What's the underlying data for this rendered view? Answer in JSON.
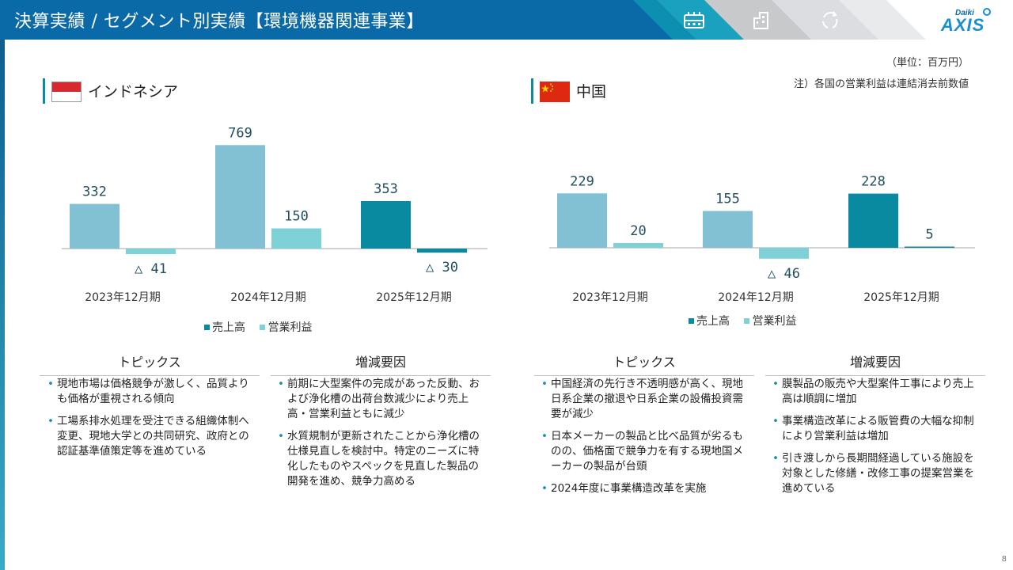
{
  "header": {
    "title": "決算実績 / セグメント別実績【環境機器関連事業】",
    "nav_icons": [
      "factory-icon",
      "building-icon",
      "recycle-icon"
    ],
    "logo_small": "Daiki",
    "logo_main": "AXIS"
  },
  "unit_note": "（単位：百万円）",
  "consolidation_note": "注）各国の営業利益は連結消去前数値",
  "legend": {
    "sales": "売上高",
    "profit": "営業利益"
  },
  "colors": {
    "header": "#0a6aa8",
    "accent": "#0b8b9e",
    "sales_past": "#82c1d3",
    "sales_current": "#0a8aa0",
    "profit": "#7fd1d8"
  },
  "panels": [
    {
      "country": "インドネシア",
      "flag": "indonesia-flag",
      "topics_heading": "トピックス",
      "factors_heading": "増減要因",
      "topics": [
        "現地市場は価格競争が激しく、品質よりも価格が重視される傾向",
        "工場系排水処理を受注できる組織体制へ変更、現地大学との共同研究、政府との認証基準値策定等を進めている"
      ],
      "factors": [
        "前期に大型案件の完成があった反動、および浄化槽の出荷台数減少により売上高・営業利益ともに減少",
        "水質規制が更新されたことから浄化槽の仕様見直しを検討中。特定のニーズに特化したものやスペックを見直した製品の開発を進め、競争力高める"
      ]
    },
    {
      "country": "中国",
      "flag": "china-flag",
      "topics_heading": "トピックス",
      "factors_heading": "増減要因",
      "topics": [
        "中国経済の先行き不透明感が高く、現地日系企業の撤退や日系企業の設備投資需要が減少",
        "日本メーカーの製品と比べ品質が劣るものの、価格面で競争力を有する現地国メーカーの製品が台頭",
        "2024年度に事業構造改革を実施"
      ],
      "factors": [
        "膜製品の販売や大型案件工事により売上高は順調に増加",
        "事業構造改革による販管費の大幅な抑制により営業利益は増加",
        "引き渡しから長期間経過している施設を対象とした修繕・改修工事の提案営業を進めている"
      ]
    }
  ],
  "chart_data": [
    {
      "type": "bar",
      "title": "インドネシア",
      "categories": [
        "2023年12月期",
        "2024年12月期",
        "2025年12月期"
      ],
      "series": [
        {
          "name": "売上高",
          "values": [
            332,
            769,
            353
          ],
          "labels": [
            "332",
            "769",
            "353"
          ]
        },
        {
          "name": "営業利益",
          "values": [
            -41,
            150,
            -30
          ],
          "labels": [
            "△ 41",
            "150",
            "△ 30"
          ]
        }
      ],
      "legend_position": "bottom",
      "grid": false
    },
    {
      "type": "bar",
      "title": "中国",
      "categories": [
        "2023年12月期",
        "2024年12月期",
        "2025年12月期"
      ],
      "series": [
        {
          "name": "売上高",
          "values": [
            229,
            155,
            228
          ],
          "labels": [
            "229",
            "155",
            "228"
          ]
        },
        {
          "name": "営業利益",
          "values": [
            20,
            -46,
            5
          ],
          "labels": [
            "20",
            "△ 46",
            "5"
          ]
        }
      ],
      "legend_position": "bottom",
      "grid": false
    }
  ],
  "page_number": "8"
}
